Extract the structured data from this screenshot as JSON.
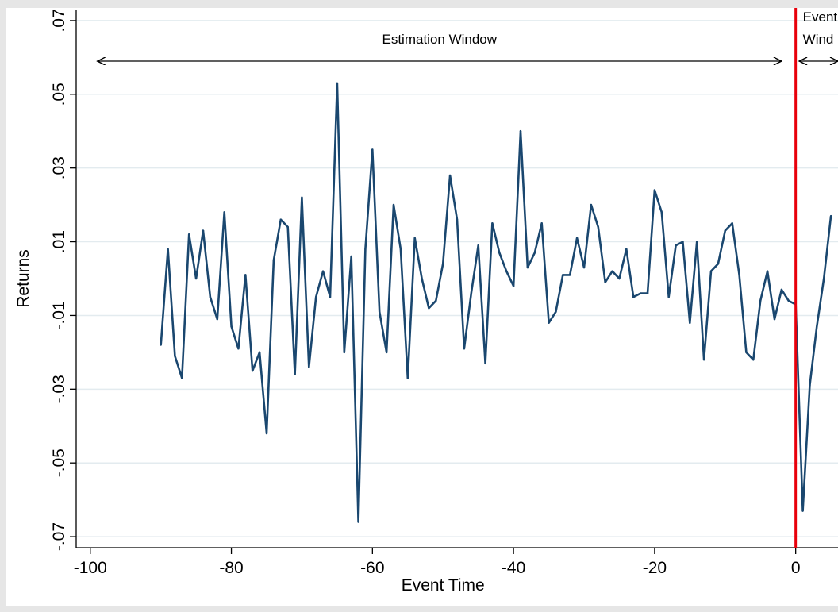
{
  "chart_data": {
    "type": "line",
    "title": "",
    "xlabel": "Event Time",
    "ylabel": "Returns",
    "xlim": [
      -102,
      6
    ],
    "ylim": [
      -0.073,
      0.073
    ],
    "xticks": [
      -100,
      -80,
      -60,
      -40,
      -20,
      0
    ],
    "xtick_labels": [
      "-100",
      "-80",
      "-60",
      "-40",
      "-20",
      "0"
    ],
    "yticks": [
      -0.07,
      -0.05,
      -0.03,
      -0.01,
      0.01,
      0.03,
      0.05,
      0.07
    ],
    "ytick_labels": [
      "-.07",
      "-.05",
      "-.03",
      "-.01",
      ".01",
      ".03",
      ".05",
      ".07"
    ],
    "grid": true,
    "legend": "none",
    "colors": {
      "series": "#1a476f",
      "event_line": "#e8000b",
      "grid": "#e3ebef",
      "background": "#e6e6e6"
    },
    "event_line_x": 0,
    "annotations": [
      {
        "label": "Estimation Window",
        "from_x": -99,
        "to_x": -2,
        "y": 0.059
      },
      {
        "label_line1": "Event",
        "label_line2": "Wind",
        "from_x": 0.5,
        "to_x": 6,
        "y": 0.059
      }
    ],
    "series": [
      {
        "x": [
          -90,
          -89,
          -88,
          -87,
          -86,
          -85,
          -84,
          -83,
          -82,
          -81,
          -80,
          -79,
          -78,
          -77,
          -76,
          -75,
          -74,
          -73,
          -72,
          -71,
          -70,
          -69,
          -68,
          -67,
          -66,
          -65,
          -64,
          -63,
          -62,
          -61,
          -60,
          -59,
          -58,
          -57,
          -56,
          -55,
          -54,
          -53,
          -52,
          -51,
          -50,
          -49,
          -48,
          -47,
          -46,
          -45,
          -44,
          -43,
          -42,
          -41,
          -40,
          -39,
          -38,
          -37,
          -36,
          -35,
          -34,
          -33,
          -32,
          -31,
          -30,
          -29,
          -28,
          -27,
          -26,
          -25,
          -24,
          -23,
          -22,
          -21,
          -20,
          -19,
          -18,
          -17,
          -16,
          -15,
          -14,
          -13,
          -12,
          -11,
          -10,
          -9,
          -8,
          -7,
          -6,
          -5,
          -4,
          -3,
          -2,
          -1,
          0,
          1,
          2,
          3,
          4,
          5
        ],
        "y": [
          -0.018,
          0.008,
          -0.021,
          -0.027,
          0.012,
          0.0,
          0.013,
          -0.005,
          -0.011,
          0.018,
          -0.013,
          -0.019,
          0.001,
          -0.025,
          -0.02,
          -0.042,
          0.005,
          0.016,
          0.014,
          -0.026,
          0.022,
          -0.024,
          -0.005,
          0.002,
          -0.005,
          0.053,
          -0.02,
          0.006,
          -0.066,
          0.008,
          0.035,
          -0.009,
          -0.02,
          0.02,
          0.008,
          -0.027,
          0.011,
          0.0,
          -0.008,
          -0.006,
          0.004,
          0.028,
          0.016,
          -0.019,
          -0.004,
          0.009,
          -0.023,
          0.015,
          0.007,
          0.002,
          -0.002,
          0.04,
          0.003,
          0.007,
          0.015,
          -0.012,
          -0.009,
          0.001,
          0.001,
          0.011,
          0.003,
          0.02,
          0.014,
          -0.001,
          0.002,
          0.0,
          0.008,
          -0.005,
          -0.004,
          -0.004,
          0.024,
          0.018,
          -0.005,
          0.009,
          0.01,
          -0.012,
          0.01,
          -0.022,
          0.002,
          0.004,
          0.013,
          0.015,
          0.001,
          -0.02,
          -0.022,
          -0.006,
          0.002,
          -0.011,
          -0.003,
          -0.006,
          -0.007,
          -0.063,
          -0.029,
          -0.013,
          0.0,
          0.017
        ]
      }
    ]
  }
}
